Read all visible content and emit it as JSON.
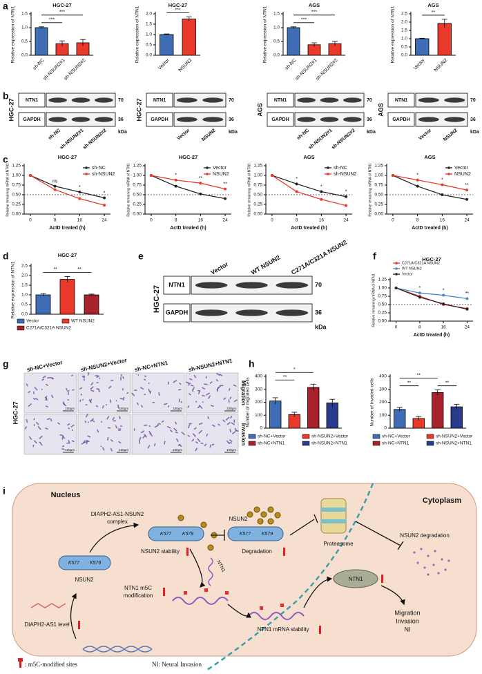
{
  "panel_labels": [
    "a",
    "b",
    "c",
    "d",
    "e",
    "f",
    "g",
    "h",
    "i"
  ],
  "chart_data": [
    {
      "type": "bar",
      "title": "HGC-27",
      "ylabel": "Relative expression of NTN1",
      "categories": [
        "sh-NC",
        "sh-NSUN2#1",
        "sh-NSUN2#2"
      ],
      "values": [
        1.0,
        0.42,
        0.45
      ],
      "errors": [
        0.03,
        0.1,
        0.12
      ],
      "colors": [
        "#3e6db5",
        "#e8392b",
        "#e8392b"
      ],
      "ylim": [
        0,
        1.5
      ],
      "yticks": [
        {
          "value": 0,
          "label": "0.0"
        },
        {
          "value": 0.5,
          "label": "0.5"
        },
        {
          "value": 1,
          "label": "1.0"
        },
        {
          "value": 1.5,
          "label": "1.5"
        }
      ],
      "annotations": [
        "***",
        "***"
      ]
    },
    {
      "type": "bar",
      "title": "HGC-27",
      "ylabel": "Relative expression of NTN1",
      "categories": [
        "Vector",
        "NSUN2"
      ],
      "values": [
        1.0,
        1.75
      ],
      "errors": [
        0.03,
        0.1
      ],
      "colors": [
        "#3e6db5",
        "#e8392b"
      ],
      "ylim": [
        0,
        2
      ],
      "yticks": [
        {
          "value": 0,
          "label": "0.0"
        },
        {
          "value": 0.5,
          "label": "0.5"
        },
        {
          "value": 1,
          "label": "1.0"
        },
        {
          "value": 1.5,
          "label": "1.5"
        },
        {
          "value": 2,
          "label": "2.0"
        }
      ],
      "annotations": [
        "***"
      ]
    },
    {
      "type": "bar",
      "title": "AGS",
      "ylabel": "Relative expression of NTN1",
      "categories": [
        "sh-NC",
        "sh-NSUN2#1",
        "sh-NSUN2#2"
      ],
      "values": [
        1.0,
        0.38,
        0.42
      ],
      "errors": [
        0.03,
        0.07,
        0.08
      ],
      "colors": [
        "#3e6db5",
        "#e8392b",
        "#e8392b"
      ],
      "ylim": [
        0,
        1.5
      ],
      "yticks": [
        {
          "value": 0,
          "label": "0.0"
        },
        {
          "value": 0.5,
          "label": "0.5"
        },
        {
          "value": 1,
          "label": "1.0"
        },
        {
          "value": 1.5,
          "label": "1.5"
        }
      ],
      "annotations": [
        "***",
        "***"
      ]
    },
    {
      "type": "bar",
      "title": "AGS",
      "ylabel": "Relative expression of NTN1",
      "categories": [
        "Vector",
        "NSUN2"
      ],
      "values": [
        1.0,
        1.92
      ],
      "errors": [
        0.03,
        0.25
      ],
      "colors": [
        "#3e6db5",
        "#e8392b"
      ],
      "ylim": [
        0,
        2.5
      ],
      "yticks": [
        {
          "value": 0,
          "label": "0.0"
        },
        {
          "value": 0.5,
          "label": "0.5"
        },
        {
          "value": 1,
          "label": "1.0"
        },
        {
          "value": 1.5,
          "label": "1.5"
        },
        {
          "value": 2,
          "label": "2.0"
        },
        {
          "value": 2.5,
          "label": "2.5"
        }
      ],
      "annotations": [
        "**"
      ]
    },
    {
      "type": "line",
      "title": "HGC-27",
      "xlabel": "ActD treated (h)",
      "ylabel": "Relative remaining mRNA of NTN1",
      "x": [
        0,
        8,
        16,
        24
      ],
      "xlim": [
        -2,
        26
      ],
      "xticks": [
        0,
        8,
        16,
        24
      ],
      "ylim": [
        0,
        1.25
      ],
      "yticks": [
        {
          "value": 0,
          "label": "0.00"
        },
        {
          "value": 0.25,
          "label": "0.25"
        },
        {
          "value": 0.5,
          "label": "0.50"
        },
        {
          "value": 0.75,
          "label": "0.75"
        },
        {
          "value": 1,
          "label": "1.00"
        },
        {
          "value": 1.25,
          "label": "1.25"
        }
      ],
      "reference_line": 0.5,
      "legend": "upper right",
      "series": [
        {
          "name": "sh-NC",
          "color": "#222222",
          "values": [
            1.0,
            0.72,
            0.57,
            0.42
          ]
        },
        {
          "name": "sh-NSUN2",
          "color": "#e8392b",
          "values": [
            1.0,
            0.63,
            0.4,
            0.23
          ]
        }
      ],
      "annotations": [
        "ns",
        "*",
        "*"
      ]
    },
    {
      "type": "line",
      "title": "HGC-27",
      "xlabel": "ActD treated (h)",
      "ylabel": "Relative remaining mRNA of NTN1",
      "x": [
        0,
        8,
        16,
        24
      ],
      "xlim": [
        -2,
        26
      ],
      "xticks": [
        0,
        8,
        16,
        24
      ],
      "ylim": [
        0,
        1.25
      ],
      "yticks": [
        {
          "value": 0,
          "label": "0.00"
        },
        {
          "value": 0.25,
          "label": "0.25"
        },
        {
          "value": 0.5,
          "label": "0.50"
        },
        {
          "value": 0.75,
          "label": "0.75"
        },
        {
          "value": 1,
          "label": "1.00"
        },
        {
          "value": 1.25,
          "label": "1.25"
        }
      ],
      "reference_line": 0.5,
      "legend": "upper right",
      "series": [
        {
          "name": "Vector",
          "color": "#222222",
          "values": [
            1.0,
            0.72,
            0.52,
            0.4
          ]
        },
        {
          "name": "NSUN2",
          "color": "#e8392b",
          "values": [
            1.0,
            0.88,
            0.8,
            0.65
          ]
        }
      ],
      "annotations": [
        "*",
        "**",
        "**"
      ]
    },
    {
      "type": "line",
      "title": "AGS",
      "xlabel": "ActD treated (h)",
      "ylabel": "Relative remaining mRNA of NTN1",
      "x": [
        0,
        8,
        16,
        24
      ],
      "xlim": [
        -2,
        26
      ],
      "xticks": [
        0,
        8,
        16,
        24
      ],
      "ylim": [
        0,
        1.25
      ],
      "yticks": [
        {
          "value": 0,
          "label": "0.00"
        },
        {
          "value": 0.25,
          "label": "0.25"
        },
        {
          "value": 0.5,
          "label": "0.50"
        },
        {
          "value": 0.75,
          "label": "0.75"
        },
        {
          "value": 1,
          "label": "1.00"
        },
        {
          "value": 1.25,
          "label": "1.25"
        }
      ],
      "reference_line": 0.5,
      "legend": "upper right",
      "series": [
        {
          "name": "sh-NC",
          "color": "#222222",
          "values": [
            1.0,
            0.78,
            0.58,
            0.45
          ]
        },
        {
          "name": "sh-NSUN2",
          "color": "#e8392b",
          "values": [
            1.0,
            0.58,
            0.38,
            0.22
          ]
        }
      ],
      "annotations": [
        "*",
        "*",
        "*"
      ]
    },
    {
      "type": "line",
      "title": "AGS",
      "xlabel": "ActD treated (h)",
      "ylabel": "Relative remaining mRNA of NTN1",
      "x": [
        0,
        8,
        16,
        24
      ],
      "xlim": [
        -2,
        26
      ],
      "xticks": [
        0,
        8,
        16,
        24
      ],
      "ylim": [
        0,
        1.25
      ],
      "yticks": [
        {
          "value": 0,
          "label": "0.00"
        },
        {
          "value": 0.25,
          "label": "0.25"
        },
        {
          "value": 0.5,
          "label": "0.50"
        },
        {
          "value": 0.75,
          "label": "0.75"
        },
        {
          "value": 1,
          "label": "1.00"
        },
        {
          "value": 1.25,
          "label": "1.25"
        }
      ],
      "reference_line": 0.5,
      "legend": "upper right",
      "series": [
        {
          "name": "Vector",
          "color": "#222222",
          "values": [
            1.0,
            0.72,
            0.5,
            0.38
          ]
        },
        {
          "name": "NSUN2",
          "color": "#e8392b",
          "values": [
            1.0,
            0.88,
            0.76,
            0.62
          ]
        }
      ],
      "annotations": [
        "*",
        "*",
        "**"
      ]
    },
    {
      "type": "bar",
      "title": "HGC-27",
      "ylabel": "Relative expression of NTN1",
      "categories": [
        "Vector",
        "WT NSUN2",
        "C271A/C321A NSUN2"
      ],
      "values": [
        1.0,
        1.8,
        1.0
      ],
      "errors": [
        0.07,
        0.15,
        0.04
      ],
      "colors": [
        "#3e6db5",
        "#e8392b",
        "#a8222b"
      ],
      "ylim": [
        0,
        2.5
      ],
      "yticks": [
        {
          "value": 0,
          "label": "0.0"
        },
        {
          "value": 0.5,
          "label": "0.5"
        },
        {
          "value": 1,
          "label": "1.0"
        },
        {
          "value": 1.5,
          "label": "1.5"
        },
        {
          "value": 2,
          "label": "2.0"
        },
        {
          "value": 2.5,
          "label": "2.5"
        }
      ],
      "legend": true,
      "annotations": [
        "**",
        "**"
      ]
    },
    {
      "type": "line",
      "title": "HGC-27",
      "xlabel": "ActD treated (h)",
      "ylabel": "Relative remaining mRNA of NTN1",
      "x": [
        0,
        8,
        16,
        24
      ],
      "xlim": [
        -2,
        26
      ],
      "xticks": [
        0,
        8,
        16,
        24
      ],
      "ylim": [
        0,
        1.25
      ],
      "yticks": [
        {
          "value": 0,
          "label": "0.00"
        },
        {
          "value": 0.25,
          "label": "0.25"
        },
        {
          "value": 0.5,
          "label": "0.50"
        },
        {
          "value": 0.75,
          "label": "0.75"
        },
        {
          "value": 1,
          "label": "1.00"
        },
        {
          "value": 1.25,
          "label": "1.25"
        }
      ],
      "reference_line": 0.5,
      "legend": "upper left",
      "series": [
        {
          "name": "C271A/C321A NSUN2",
          "color": "#e8392b",
          "values": [
            1.0,
            0.75,
            0.5,
            0.38
          ]
        },
        {
          "name": "WT NSUN2",
          "color": "#4a86c8",
          "values": [
            1.0,
            0.85,
            0.78,
            0.68
          ]
        },
        {
          "name": "Vector",
          "color": "#222222",
          "values": [
            1.0,
            0.72,
            0.52,
            0.36
          ]
        }
      ],
      "annotations": [
        "*",
        "*",
        "**"
      ]
    },
    {
      "type": "bar",
      "ylabel": "Number of migrated cells",
      "categories": [
        "sh-NC+Vector",
        "sh-NSUN2+Vector",
        "sh-NC+NTN1",
        "sh-NSUN2+NTN1"
      ],
      "values": [
        210,
        105,
        315,
        195
      ],
      "errors": [
        25,
        18,
        25,
        28
      ],
      "colors": [
        "#3e6db5",
        "#e8392b",
        "#a8222b",
        "#2a3a8c"
      ],
      "ylim": [
        0,
        400
      ],
      "yticks": [
        0,
        100,
        200,
        300,
        400
      ],
      "legend": true,
      "annotations": [
        "*",
        "**"
      ]
    },
    {
      "type": "bar",
      "ylabel": "Number of invaded cells",
      "categories": [
        "sh-NC+Vector",
        "sh-NSUN2+Vector",
        "sh-NC+NTN1",
        "sh-NSUN2+NTN1"
      ],
      "values": [
        145,
        75,
        275,
        165
      ],
      "errors": [
        15,
        15,
        20,
        20
      ],
      "colors": [
        "#3e6db5",
        "#e8392b",
        "#a8222b",
        "#2a3a8c"
      ],
      "ylim": [
        0,
        400
      ],
      "yticks": [
        0,
        100,
        200,
        300,
        400
      ],
      "legend": true,
      "annotations": [
        "**",
        "**",
        "**"
      ]
    }
  ],
  "blots": [
    {
      "cell": "HGC-27",
      "bands": [
        {
          "protein": "NTN1",
          "size": 70
        },
        {
          "protein": "GAPDH",
          "size": 36
        }
      ],
      "lanes": [
        "sh-NC",
        "sh-NSUN2#1",
        "sh-NSUN2#2"
      ],
      "unit": "kDa"
    },
    {
      "cell": "HGC-27",
      "bands": [
        {
          "protein": "NTN1",
          "size": 70
        },
        {
          "protein": "GAPDH",
          "size": 36
        }
      ],
      "lanes": [
        "Vector",
        "NSUN2"
      ],
      "unit": "kDa"
    },
    {
      "cell": "AGS",
      "bands": [
        {
          "protein": "NTN1",
          "size": 70
        },
        {
          "protein": "GAPDH",
          "size": 36
        }
      ],
      "lanes": [
        "sh-NC",
        "sh-NSUN2#1",
        "sh-NSUN2#2"
      ],
      "unit": "kDa"
    },
    {
      "cell": "AGS",
      "bands": [
        {
          "protein": "NTN1",
          "size": 70
        },
        {
          "protein": "GAPDH",
          "size": 36
        }
      ],
      "lanes": [
        "Vector",
        "NSUN2"
      ],
      "unit": "kDa"
    },
    {
      "cell": "HGC-27",
      "bands": [
        {
          "protein": "NTN1",
          "size": 70
        },
        {
          "protein": "GAPDH",
          "size": 36
        }
      ],
      "lanes": [
        "Vector",
        "WT NSUN2",
        "C271A/C321A NSUN2"
      ],
      "unit": "kDa"
    }
  ],
  "migration_images": {
    "cell": "HGC-27",
    "columns": [
      "sh-NC+Vector",
      "sh-NSUN2+Vector",
      "sh-NC+NTN1",
      "sh-NSUN2+NTN1"
    ],
    "rows": [
      "Migration",
      "Invasion"
    ],
    "scale_bar": "100μm"
  },
  "diagram": {
    "nucleus": "Nucleus",
    "cytoplasm": "Cytoplasm",
    "complex": [
      "DIAPH2-AS1-NSUN2",
      "complex"
    ],
    "sites": [
      "K577",
      "K579"
    ],
    "nsun2_stability": "NSUN2 stability",
    "nsun2_free": "NSUN2",
    "nsun2_top": "NSUN2",
    "degradation": "Degradation",
    "proteasome": "Proteasome",
    "nsun2_degradation": "NSUN2 degradation",
    "ntn1_transcript": "NTN1",
    "m5c_modification": [
      "NTN1 m5C",
      "modification"
    ],
    "diaph2_level": "DIAPH2-AS1 level",
    "mrna_stability": "NTN1 mRNA stability",
    "ntn1_protein": "NTN1",
    "outcomes": [
      "Migration",
      "Invasion",
      "NI"
    ],
    "legend_site": ": m5C-modified sites",
    "legend_ni": "NI: Neural Invasion"
  }
}
